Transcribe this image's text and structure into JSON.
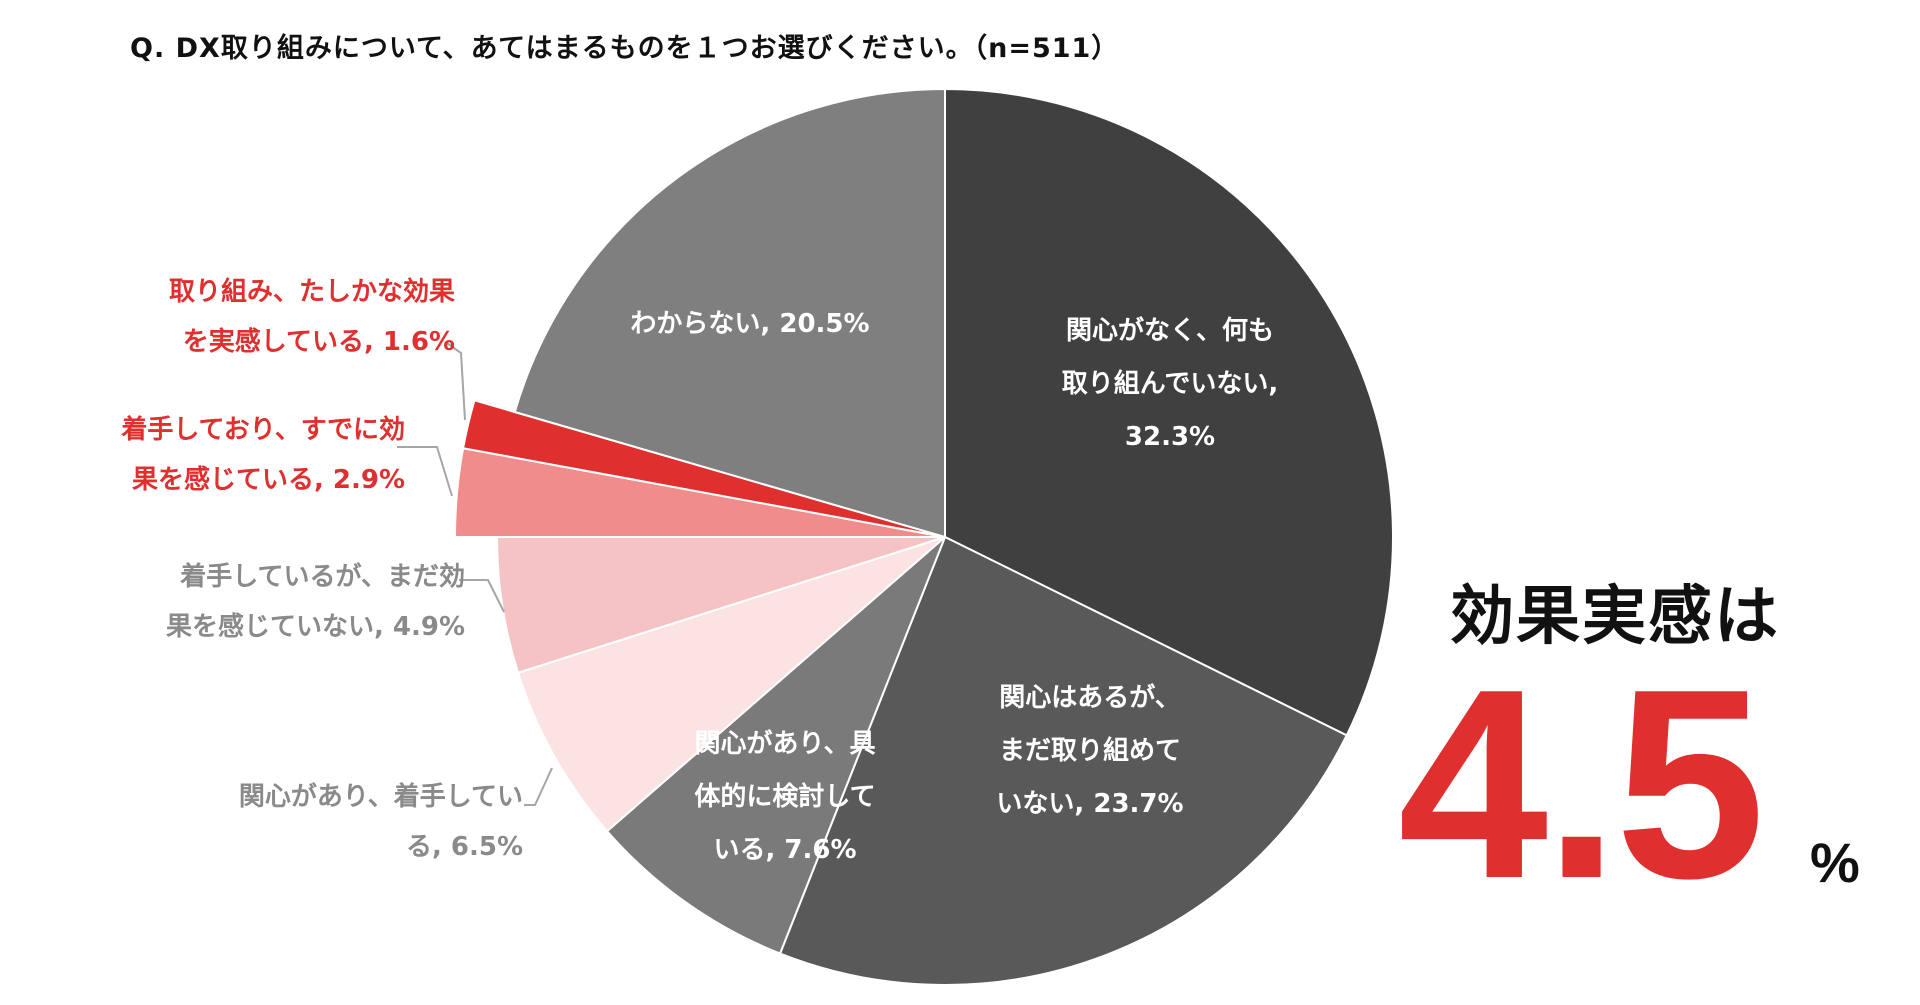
{
  "chart_data": {
    "type": "pie",
    "title": "Q. DX取り組みについて、あてはまるものを１つお選びください。（n=511）",
    "slices": [
      {
        "label": "関心がなく、何も取り組んでいない, 32.3%",
        "value": 32.3,
        "color": "#404040",
        "exploded": false
      },
      {
        "label": "関心はあるが、まだ取り組めていない, 23.7%",
        "value": 23.7,
        "color": "#595959",
        "exploded": false
      },
      {
        "label": "関心があり、具体的に検討している, 7.6%",
        "value": 7.6,
        "color": "#7a7a7a",
        "exploded": false
      },
      {
        "label": "関心があり、着手している, 6.5%",
        "value": 6.5,
        "color": "#fbe3e3",
        "exploded": false
      },
      {
        "label": "着手しているが、まだ効果を感じていない, 4.9%",
        "value": 4.9,
        "color": "#f5c3c3",
        "exploded": false
      },
      {
        "label": "着手しており、すでに効果を感じている, 2.9%",
        "value": 2.9,
        "color": "#f08c8c",
        "exploded": true
      },
      {
        "label": "取り組み、たしかな効果を実感している, 1.6%",
        "value": 1.6,
        "color": "#e02f2f",
        "exploded": true
      },
      {
        "label": "わからない, 20.5%",
        "value": 20.5,
        "color": "#7f7f7f",
        "exploded": false
      }
    ],
    "start_angle": "12 o'clock",
    "direction": "clockwise",
    "legend": "none"
  },
  "slice_text": {
    "s0": [
      "関心がなく、何も",
      "取り組んでいない,",
      "32.3%"
    ],
    "s1": [
      "関心はあるが、",
      "まだ取り組めて",
      "いない, 23.7%"
    ],
    "s2": [
      "関心があり、具",
      "体的に検討して",
      "いる, 7.6%"
    ],
    "s7": [
      "わからない, 20.5%"
    ],
    "s6": [
      "取り組み、たしかな効果",
      "を実感している, 1.6%"
    ],
    "s5": [
      "着手しており、すでに効",
      "果を感じている, 2.9%"
    ],
    "s4": [
      "着手しているが、まだ効",
      "果を感じていない, 4.9%"
    ],
    "s3": [
      "関心があり、着手してい",
      "る, 6.5%"
    ]
  },
  "callout": {
    "heading": "効果実感は",
    "number": "4.5",
    "unit": "%",
    "number_color": "#e02f2f"
  },
  "colors": {
    "leader": "#a6a6a6",
    "red_text": "#e02f2f",
    "grey_text": "#8a8a8a",
    "slice_border": "#ffffff"
  }
}
